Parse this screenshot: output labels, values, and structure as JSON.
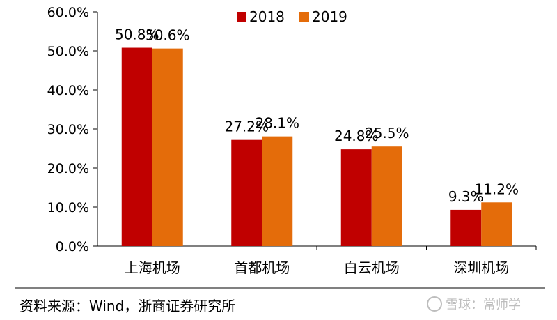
{
  "chart_data": {
    "type": "bar",
    "categories": [
      "上海机场",
      "首都机场",
      "白云机场",
      "深圳机场"
    ],
    "series": [
      {
        "name": "2018",
        "values": [
          50.8,
          27.2,
          24.8,
          9.3
        ],
        "labels": [
          "50.8%",
          "27.2%",
          "24.8%",
          "9.3%"
        ],
        "color": "#C00000"
      },
      {
        "name": "2019",
        "values": [
          50.6,
          28.1,
          25.5,
          11.2
        ],
        "labels": [
          "50.6%",
          "28.1%",
          "25.5%",
          "11.2%"
        ],
        "color": "#E46C0A"
      }
    ],
    "ylim": [
      0,
      60
    ],
    "yticks": [
      0,
      10,
      20,
      30,
      40,
      50,
      60
    ],
    "ytick_labels": [
      "0.0%",
      "10.0%",
      "20.0%",
      "30.0%",
      "40.0%",
      "50.0%",
      "60.0%"
    ],
    "grid": false,
    "legend_position": "top-center"
  },
  "source": "资料来源：Wind，浙商证券研究所",
  "watermark": "雪球：常师学"
}
